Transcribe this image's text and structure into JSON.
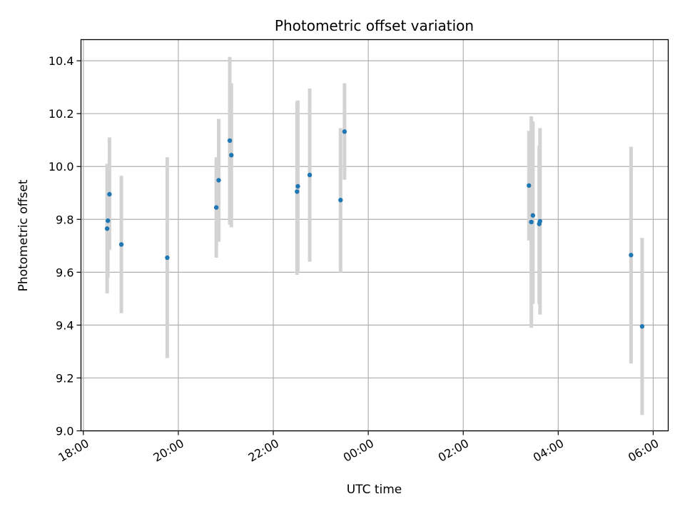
{
  "chart_data": {
    "type": "scatter",
    "title": "Photometric offset variation",
    "xlabel": "UTC time",
    "ylabel": "Photometric offset",
    "x_axis": "datetime (HH:MM)",
    "xlim": [
      "17:57",
      "06:19"
    ],
    "ylim": [
      9.0,
      10.48
    ],
    "xticks": [
      "18:00",
      "20:00",
      "22:00",
      "00:00",
      "02:00",
      "04:00",
      "06:00"
    ],
    "yticks": [
      "9.0",
      "9.2",
      "9.4",
      "9.6",
      "9.8",
      "10.0",
      "10.2",
      "10.4"
    ],
    "grid": true,
    "legend": "none",
    "point_color": "#1f77b4",
    "errorbar_color": "#d3d3d3",
    "points": [
      {
        "time": "18:30",
        "y": 9.765,
        "err_low": 9.52,
        "err_high": 10.01
      },
      {
        "time": "18:31",
        "y": 9.795,
        "err_low": 9.58,
        "err_high": 10.01
      },
      {
        "time": "18:33",
        "y": 9.895,
        "err_low": 9.685,
        "err_high": 10.11
      },
      {
        "time": "18:48",
        "y": 9.705,
        "err_low": 9.445,
        "err_high": 9.965
      },
      {
        "time": "19:46",
        "y": 9.655,
        "err_low": 9.275,
        "err_high": 10.035
      },
      {
        "time": "20:48",
        "y": 9.845,
        "err_low": 9.655,
        "err_high": 10.035
      },
      {
        "time": "20:51",
        "y": 9.948,
        "err_low": 9.715,
        "err_high": 10.18
      },
      {
        "time": "21:05",
        "y": 10.098,
        "err_low": 9.78,
        "err_high": 10.415
      },
      {
        "time": "21:07",
        "y": 10.043,
        "err_low": 9.77,
        "err_high": 10.315
      },
      {
        "time": "22:30",
        "y": 9.905,
        "err_low": 9.59,
        "err_high": 10.245
      },
      {
        "time": "22:31",
        "y": 9.925,
        "err_low": 9.6,
        "err_high": 10.25
      },
      {
        "time": "22:46",
        "y": 9.968,
        "err_low": 9.64,
        "err_high": 10.295
      },
      {
        "time": "23:25",
        "y": 9.873,
        "err_low": 9.6,
        "err_high": 10.145
      },
      {
        "time": "23:30",
        "y": 10.132,
        "err_low": 9.95,
        "err_high": 10.315
      },
      {
        "time": "03:23",
        "y": 9.928,
        "err_low": 9.72,
        "err_high": 10.135
      },
      {
        "time": "03:26",
        "y": 9.79,
        "err_low": 9.39,
        "err_high": 10.19
      },
      {
        "time": "03:28",
        "y": 9.815,
        "err_low": 9.48,
        "err_high": 10.17
      },
      {
        "time": "03:36",
        "y": 9.783,
        "err_low": 9.48,
        "err_high": 10.08
      },
      {
        "time": "03:37",
        "y": 9.793,
        "err_low": 9.44,
        "err_high": 10.145
      },
      {
        "time": "05:32",
        "y": 9.665,
        "err_low": 9.255,
        "err_high": 10.075
      },
      {
        "time": "05:46",
        "y": 9.395,
        "err_low": 9.06,
        "err_high": 9.73
      }
    ]
  }
}
